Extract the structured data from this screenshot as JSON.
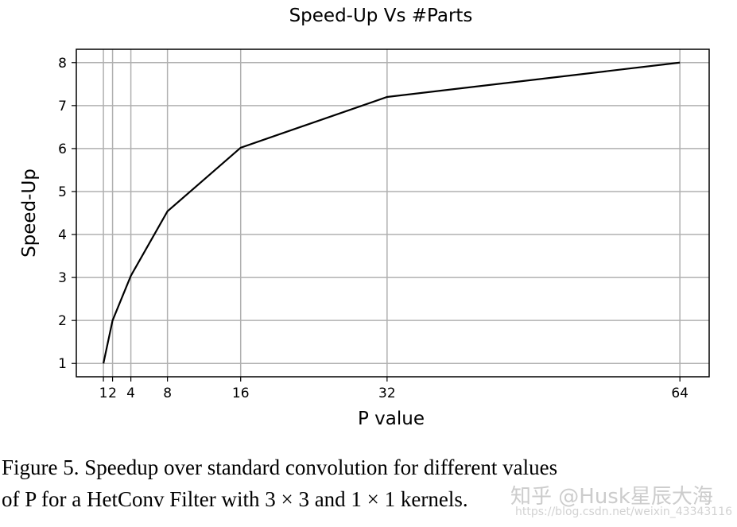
{
  "chart_data": {
    "type": "line",
    "title": "Speed-Up Vs #Parts",
    "xlabel": "P value",
    "ylabel": "Speed-Up",
    "x": [
      1,
      2,
      4,
      8,
      16,
      32,
      64
    ],
    "series": [
      {
        "values": [
          1,
          2.0,
          3.04,
          4.54,
          6.02,
          7.2,
          8.0
        ],
        "color": "#000000"
      }
    ],
    "xticks": [
      1,
      2,
      4,
      8,
      16,
      32,
      64
    ],
    "xtick_labels": [
      "1",
      "2",
      "4",
      "8",
      "16",
      "32",
      "64"
    ],
    "yticks": [
      1,
      2,
      3,
      4,
      5,
      6,
      7,
      8
    ],
    "ytick_labels": [
      "1",
      "2",
      "3",
      "4",
      "5",
      "6",
      "7",
      "8"
    ],
    "xlim": [
      -1.96,
      67.2
    ],
    "ylim": [
      0.69,
      8.31
    ],
    "grid": true,
    "grid_color": "#b0b0b0"
  },
  "caption": {
    "line1": "Figure 5. Speedup over standard convolution for different values",
    "line2": "of P for a HetConv Filter with 3 × 3 and 1 × 1 kernels."
  },
  "watermark": {
    "text": "知乎 @Husk星辰大海",
    "url": "https://blog.csdn.net/weixin_43343116"
  }
}
